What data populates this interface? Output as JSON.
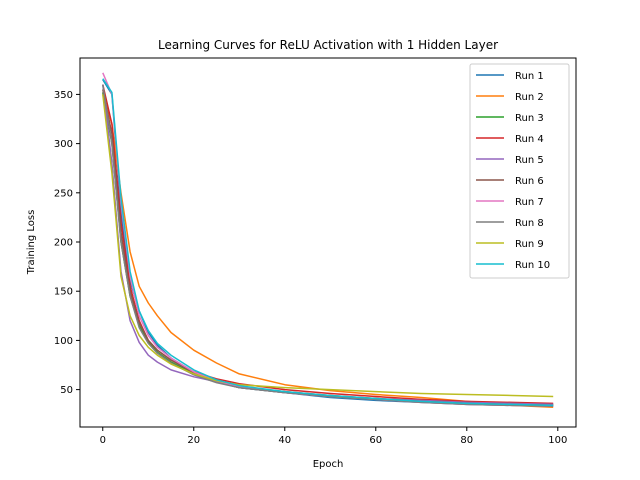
{
  "chart_data": {
    "type": "line",
    "title": "Learning Curves for ReLU Activation with 1 Hidden Layer",
    "xlabel": "Epoch",
    "ylabel": "Training Loss",
    "xlim": [
      -5,
      104
    ],
    "ylim": [
      12,
      387
    ],
    "xticks": [
      0,
      20,
      40,
      60,
      80,
      100
    ],
    "yticks": [
      50,
      100,
      150,
      200,
      250,
      300,
      350
    ],
    "grid": false,
    "legend": "upper-right",
    "series": [
      {
        "name": "Run 1",
        "color": "#1f77b4",
        "x": [
          0,
          2,
          4,
          6,
          8,
          10,
          12,
          15,
          20,
          25,
          30,
          40,
          50,
          60,
          70,
          80,
          90,
          99
        ],
        "y": [
          365,
          350,
          230,
          160,
          130,
          108,
          95,
          82,
          68,
          58,
          52,
          47,
          42,
          39,
          37,
          35,
          34,
          34
        ]
      },
      {
        "name": "Run 2",
        "color": "#ff7f0e",
        "x": [
          0,
          2,
          4,
          6,
          8,
          10,
          12,
          15,
          20,
          25,
          30,
          40,
          50,
          60,
          70,
          80,
          90,
          99
        ],
        "y": [
          350,
          320,
          250,
          190,
          155,
          138,
          125,
          108,
          90,
          77,
          66,
          55,
          49,
          45,
          42,
          38,
          34,
          32
        ]
      },
      {
        "name": "Run 3",
        "color": "#2ca02c",
        "x": [
          0,
          2,
          4,
          6,
          8,
          10,
          12,
          15,
          20,
          25,
          30,
          40,
          50,
          60,
          70,
          80,
          90,
          99
        ],
        "y": [
          352,
          300,
          200,
          145,
          115,
          98,
          88,
          78,
          66,
          58,
          52,
          47,
          43,
          40,
          38,
          36,
          35,
          35
        ]
      },
      {
        "name": "Run 4",
        "color": "#d62728",
        "x": [
          0,
          2,
          4,
          6,
          8,
          10,
          12,
          15,
          20,
          25,
          30,
          40,
          50,
          60,
          70,
          80,
          90,
          99
        ],
        "y": [
          360,
          320,
          220,
          155,
          120,
          100,
          90,
          80,
          68,
          61,
          56,
          50,
          46,
          43,
          40,
          38,
          37,
          36
        ]
      },
      {
        "name": "Run 5",
        "color": "#9467bd",
        "x": [
          0,
          2,
          4,
          6,
          8,
          10,
          12,
          15,
          20,
          25,
          30,
          40,
          50,
          60,
          70,
          80,
          90,
          99
        ],
        "y": [
          360,
          280,
          170,
          120,
          98,
          85,
          78,
          70,
          63,
          58,
          52,
          47,
          43,
          41,
          39,
          37,
          36,
          35
        ]
      },
      {
        "name": "Run 6",
        "color": "#8c564b",
        "x": [
          0,
          2,
          4,
          6,
          8,
          10,
          12,
          15,
          20,
          25,
          30,
          40,
          50,
          60,
          70,
          80,
          90,
          99
        ],
        "y": [
          355,
          310,
          210,
          150,
          118,
          100,
          90,
          80,
          67,
          59,
          53,
          48,
          44,
          41,
          38,
          36,
          35,
          34
        ]
      },
      {
        "name": "Run 7",
        "color": "#e377c2",
        "x": [
          0,
          2,
          4,
          6,
          8,
          10,
          12,
          15,
          20,
          25,
          30,
          40,
          50,
          60,
          70,
          80,
          90,
          99
        ],
        "y": [
          372,
          350,
          240,
          165,
          125,
          105,
          93,
          82,
          68,
          59,
          53,
          47,
          43,
          40,
          37,
          35,
          34,
          33
        ]
      },
      {
        "name": "Run 8",
        "color": "#7f7f7f",
        "x": [
          0,
          2,
          4,
          6,
          8,
          10,
          12,
          15,
          20,
          25,
          30,
          40,
          50,
          60,
          70,
          80,
          90,
          99
        ],
        "y": [
          360,
          300,
          200,
          145,
          113,
          97,
          87,
          77,
          65,
          57,
          52,
          47,
          43,
          40,
          37,
          35,
          34,
          33
        ]
      },
      {
        "name": "Run 9",
        "color": "#bcbd22",
        "x": [
          0,
          2,
          4,
          6,
          8,
          10,
          12,
          15,
          20,
          25,
          30,
          40,
          50,
          60,
          70,
          80,
          90,
          99
        ],
        "y": [
          350,
          270,
          165,
          125,
          105,
          93,
          85,
          76,
          66,
          59,
          55,
          52,
          50,
          48,
          46,
          45,
          44,
          43
        ]
      },
      {
        "name": "Run 10",
        "color": "#17becf",
        "x": [
          0,
          2,
          4,
          6,
          8,
          10,
          12,
          15,
          20,
          25,
          30,
          40,
          50,
          60,
          70,
          80,
          90,
          99
        ],
        "y": [
          366,
          352,
          245,
          170,
          130,
          110,
          97,
          85,
          70,
          60,
          54,
          48,
          44,
          41,
          38,
          36,
          35,
          34
        ]
      }
    ]
  }
}
